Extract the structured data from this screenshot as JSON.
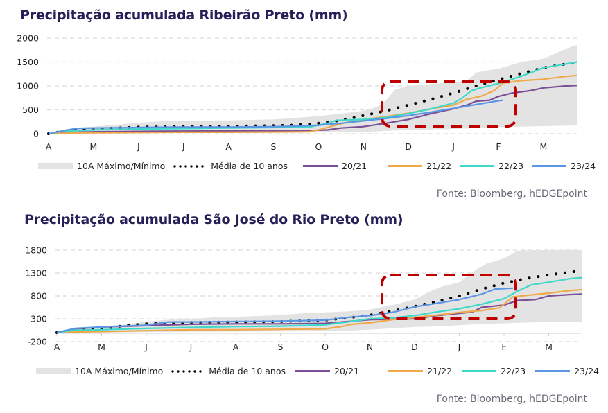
{
  "charts": [
    {
      "title": "Precipitação acumulada Ribeirão Preto (mm)",
      "source": "Fonte: Bloomberg, hEDGEpoint",
      "legend": {
        "band": "10A Máximo/Mínimo",
        "average": "Média de 10 anos",
        "s2021": "20/21",
        "s2122": "21/22",
        "s2223": "22/23",
        "s2324": "23/24"
      }
    },
    {
      "title": "Precipitação acumulada São José do Rio Preto (mm)",
      "source": "Fonte: Bloomberg, hEDGEpoint",
      "legend": {
        "band": "10A Máximo/Mínimo",
        "average": "Média de 10 anos",
        "s2021": "20/21",
        "s2122": "21/22",
        "s2223": "22/23",
        "s2324": "23/24"
      }
    }
  ],
  "chart_data": [
    {
      "type": "line",
      "title": "Precipitação acumulada Ribeirão Preto (mm)",
      "xlabel": "",
      "ylabel": "",
      "ylim": [
        0,
        2000
      ],
      "yticks": [
        0,
        500,
        1000,
        1500,
        2000
      ],
      "grid": true,
      "legend_position": "bottom",
      "categories": [
        "A",
        "M",
        "J",
        "J",
        "A",
        "S",
        "O",
        "N",
        "D",
        "J",
        "F",
        "M"
      ],
      "x_months": [
        0,
        1,
        2,
        3,
        4,
        5,
        6,
        7,
        8,
        9,
        10,
        11,
        11.75
      ],
      "highlight_box": {
        "x_range_months": [
          7.4,
          10.4
        ],
        "y_range": [
          160,
          1090
        ],
        "color": "#c00000"
      },
      "band": {
        "name": "10A Máximo/Mínimo",
        "color": "#e3e3e3",
        "x": [
          0,
          0.3,
          0.6,
          1,
          1.5,
          2,
          2.5,
          3,
          4,
          5,
          5.5,
          6,
          6.5,
          7,
          7.3,
          7.5,
          7.7,
          8,
          8.5,
          9,
          9.3,
          9.5,
          9.8,
          10,
          10.5,
          11,
          11.5,
          11.75
        ],
        "max": [
          0,
          60,
          130,
          150,
          190,
          230,
          260,
          270,
          280,
          300,
          330,
          370,
          420,
          480,
          560,
          700,
          920,
          1000,
          1040,
          1080,
          1110,
          1280,
          1330,
          1360,
          1500,
          1570,
          1780,
          1860
        ],
        "min": [
          0,
          5,
          10,
          15,
          20,
          25,
          25,
          25,
          30,
          30,
          30,
          30,
          35,
          40,
          50,
          60,
          70,
          80,
          90,
          100,
          110,
          120,
          130,
          140,
          150,
          160,
          170,
          175
        ]
      },
      "series": [
        {
          "name": "Média de 10 anos",
          "color": "#000000",
          "style": "dotted",
          "x": [
            0,
            0.3,
            0.6,
            1,
            2,
            3,
            4,
            5,
            5.5,
            6,
            6.5,
            7,
            7.5,
            8,
            8.5,
            9,
            9.5,
            10,
            10.5,
            11,
            11.5,
            11.75
          ],
          "values": [
            0,
            50,
            90,
            100,
            140,
            150,
            160,
            170,
            180,
            220,
            280,
            380,
            480,
            600,
            720,
            850,
            1000,
            1130,
            1260,
            1380,
            1460,
            1490
          ]
        },
        {
          "name": "20/21",
          "color": "#7b4f96",
          "style": "solid",
          "x": [
            0,
            0.3,
            1,
            2,
            3,
            4,
            5,
            5.8,
            6.2,
            6.5,
            7,
            7.5,
            8,
            8.5,
            9,
            9.3,
            9.5,
            9.8,
            10,
            10.3,
            10.7,
            11,
            11.5,
            11.75
          ],
          "values": [
            0,
            20,
            40,
            50,
            55,
            60,
            60,
            70,
            80,
            120,
            150,
            220,
            300,
            420,
            520,
            600,
            680,
            700,
            780,
            850,
            900,
            960,
            1000,
            1010
          ]
        },
        {
          "name": "21/22",
          "color": "#f0a94a",
          "style": "solid",
          "x": [
            0,
            0.3,
            1,
            2,
            3,
            4,
            5,
            5.8,
            6,
            6.3,
            6.6,
            7,
            7.5,
            8,
            8.5,
            9,
            9.3,
            9.6,
            9.9,
            10.1,
            10.5,
            11,
            11.5,
            11.75
          ],
          "values": [
            0,
            10,
            20,
            25,
            30,
            30,
            35,
            40,
            80,
            160,
            230,
            300,
            360,
            430,
            520,
            600,
            720,
            780,
            900,
            1060,
            1110,
            1140,
            1200,
            1220
          ]
        },
        {
          "name": "22/23",
          "color": "#3fd9c9",
          "style": "solid",
          "x": [
            0,
            0.3,
            1,
            2,
            3,
            4,
            5,
            5.8,
            6.2,
            6.4,
            7,
            7.5,
            8,
            8.5,
            9,
            9.2,
            9.4,
            9.6,
            10,
            10.5,
            11,
            11.5,
            11.75
          ],
          "values": [
            0,
            50,
            80,
            100,
            110,
            120,
            130,
            140,
            220,
            280,
            300,
            340,
            420,
            520,
            640,
            750,
            900,
            960,
            1050,
            1200,
            1380,
            1460,
            1500
          ]
        },
        {
          "name": "23/24",
          "color": "#5a96e3",
          "style": "solid",
          "x": [
            0,
            0.3,
            0.6,
            1,
            2,
            3,
            4,
            5,
            5.5,
            6,
            6.5,
            7,
            7.5,
            8,
            8.5,
            9,
            9.5,
            10,
            10.1
          ],
          "values": [
            0,
            60,
            110,
            120,
            130,
            140,
            140,
            150,
            160,
            180,
            220,
            270,
            320,
            380,
            450,
            530,
            610,
            690,
            700
          ]
        }
      ]
    },
    {
      "type": "line",
      "title": "Precipitação acumulada São José do Rio Preto (mm)",
      "xlabel": "",
      "ylabel": "",
      "ylim": [
        -200,
        1800
      ],
      "yticks": [
        -200,
        300,
        800,
        1300,
        1800
      ],
      "grid": true,
      "legend_position": "bottom",
      "categories": [
        "A",
        "M",
        "J",
        "J",
        "A",
        "S",
        "O",
        "N",
        "D",
        "J",
        "F",
        "M"
      ],
      "x_months": [
        0,
        1,
        2,
        3,
        4,
        5,
        6,
        7,
        8,
        9,
        10,
        11,
        11.75
      ],
      "highlight_box": {
        "x_range_months": [
          7.3,
          10.3
        ],
        "y_range": [
          320,
          1280
        ],
        "color": "#c00000"
      },
      "band": {
        "name": "10A Máximo/Mínimo",
        "color": "#e3e3e3",
        "x": [
          0,
          0.4,
          1,
          1.5,
          2,
          2.5,
          3,
          3.5,
          4,
          4.5,
          5,
          5.5,
          6,
          6.5,
          7,
          7.3,
          7.6,
          8,
          8.3,
          8.6,
          9,
          9.2,
          9.4,
          9.6,
          10,
          10.3,
          10.6,
          11,
          11.75
        ],
        "max": [
          0,
          90,
          140,
          170,
          240,
          280,
          300,
          330,
          340,
          360,
          380,
          420,
          440,
          460,
          500,
          560,
          620,
          720,
          880,
          1000,
          1100,
          1250,
          1390,
          1500,
          1620,
          1790,
          1800,
          1800,
          1800
        ],
        "min": [
          0,
          0,
          0,
          5,
          10,
          10,
          15,
          15,
          20,
          20,
          25,
          25,
          30,
          40,
          60,
          80,
          100,
          120,
          130,
          140,
          160,
          170,
          180,
          190,
          200,
          210,
          220,
          230,
          240
        ]
      },
      "series": [
        {
          "name": "Média de 10 anos",
          "color": "#000000",
          "style": "dotted",
          "x": [
            0,
            0.4,
            1,
            1.5,
            2,
            3,
            4,
            5,
            6,
            6.5,
            7,
            7.5,
            8,
            8.5,
            9,
            9.5,
            10,
            10.5,
            11,
            11.5,
            11.75
          ],
          "values": [
            0,
            60,
            80,
            150,
            190,
            220,
            230,
            240,
            270,
            320,
            380,
            470,
            570,
            680,
            800,
            950,
            1080,
            1180,
            1260,
            1320,
            1360
          ]
        },
        {
          "name": "20/21",
          "color": "#7b4f96",
          "style": "solid",
          "x": [
            0,
            0.4,
            1,
            2,
            3,
            4,
            5,
            6,
            6.5,
            7,
            7.5,
            8,
            8.5,
            9,
            9.3,
            9.5,
            10,
            10.3,
            10.7,
            11,
            11.5,
            11.75
          ],
          "values": [
            0,
            80,
            120,
            150,
            180,
            190,
            190,
            200,
            240,
            280,
            290,
            300,
            370,
            420,
            450,
            550,
            600,
            700,
            720,
            800,
            830,
            840
          ]
        },
        {
          "name": "21/22",
          "color": "#f0a94a",
          "style": "solid",
          "x": [
            0,
            0.4,
            1,
            2,
            3,
            4,
            5,
            6,
            6.3,
            6.6,
            7,
            7.5,
            8,
            8.5,
            9,
            9.5,
            9.9,
            10.2,
            10.5,
            11,
            11.5,
            11.75
          ],
          "values": [
            0,
            10,
            20,
            40,
            60,
            60,
            70,
            80,
            120,
            180,
            210,
            280,
            330,
            380,
            440,
            480,
            540,
            780,
            810,
            860,
            920,
            940
          ]
        },
        {
          "name": "22/23",
          "color": "#3fd9c9",
          "style": "solid",
          "x": [
            0,
            0.4,
            1,
            2,
            3,
            4,
            5,
            6,
            6.5,
            7,
            7.5,
            8,
            8.5,
            9,
            9.5,
            10,
            10.3,
            10.6,
            11,
            11.5,
            11.75
          ],
          "values": [
            0,
            50,
            60,
            90,
            110,
            130,
            140,
            170,
            230,
            300,
            320,
            370,
            450,
            520,
            620,
            740,
            900,
            1040,
            1100,
            1180,
            1200
          ]
        },
        {
          "name": "23/24",
          "color": "#5a96e3",
          "style": "solid",
          "x": [
            0,
            0.4,
            1,
            2,
            2.5,
            3,
            4,
            5,
            6,
            6.5,
            7,
            7.5,
            8,
            8.5,
            9,
            9.5,
            9.8,
            10.2
          ],
          "values": [
            0,
            90,
            120,
            160,
            230,
            230,
            240,
            250,
            270,
            330,
            370,
            440,
            560,
            640,
            720,
            840,
            950,
            970
          ]
        }
      ]
    }
  ]
}
